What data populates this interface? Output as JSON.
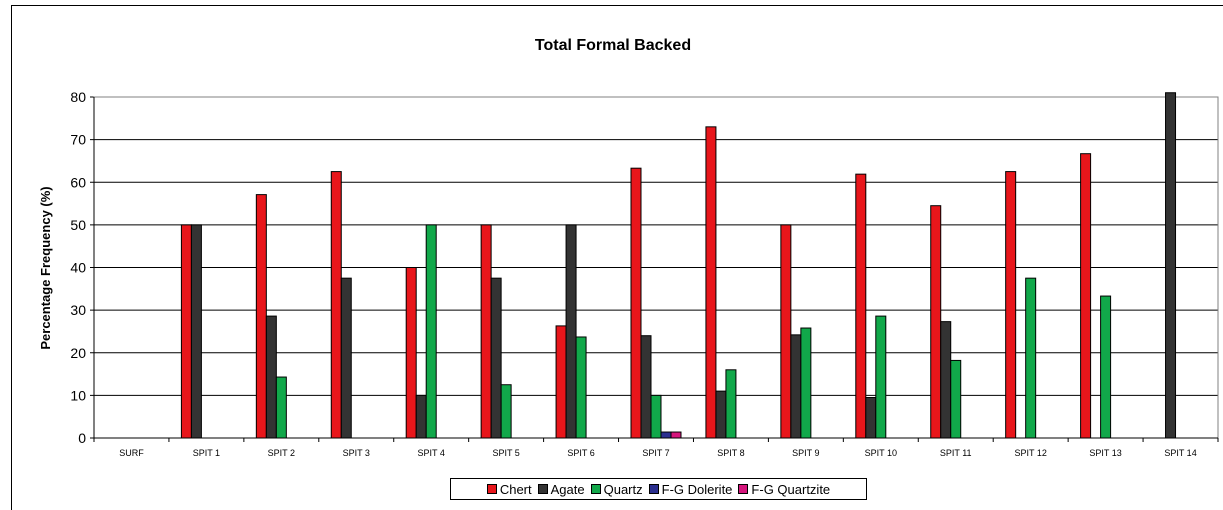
{
  "chart_data": {
    "type": "bar",
    "title": "Total Formal Backed",
    "xlabel": "",
    "ylabel": "Percentage Frequency (%)",
    "ylim": [
      0,
      80
    ],
    "yticks": [
      0,
      10,
      20,
      30,
      40,
      50,
      60,
      70,
      80
    ],
    "grid": true,
    "legend_position": "bottom",
    "categories": [
      "SURF",
      "SPIT 1",
      "SPIT 2",
      "SPIT 3",
      "SPIT 4",
      "SPIT 5",
      "SPIT 6",
      "SPIT 7",
      "SPIT 8",
      "SPIT 9",
      "SPIT 10",
      "SPIT 11",
      "SPIT 12",
      "SPIT 13",
      "SPIT 14"
    ],
    "series": [
      {
        "name": "Chert",
        "color": "#e8161b",
        "values": [
          0,
          50,
          57.1,
          62.5,
          40,
          50,
          26.3,
          63.3,
          73,
          50,
          61.9,
          54.5,
          62.5,
          66.7,
          0
        ]
      },
      {
        "name": "Agate",
        "color": "#333333",
        "values": [
          0,
          50,
          28.6,
          37.5,
          10,
          37.5,
          50,
          24,
          11,
          24.2,
          9.5,
          27.3,
          0,
          0,
          81
        ]
      },
      {
        "name": "Quartz",
        "color": "#11a84a",
        "values": [
          0,
          0,
          14.3,
          0,
          50,
          12.5,
          23.7,
          10,
          16,
          25.8,
          28.6,
          18.2,
          37.5,
          33.3,
          0
        ]
      },
      {
        "name": "F-G Dolerite",
        "color": "#2b2f8f",
        "values": [
          0,
          0,
          0,
          0,
          0,
          0,
          0,
          1.4,
          0,
          0,
          0,
          0,
          0,
          0,
          0
        ]
      },
      {
        "name": "F-G Quartzite",
        "color": "#d5157c",
        "values": [
          0,
          0,
          0,
          0,
          0,
          0,
          0,
          1.4,
          0,
          0,
          0,
          0,
          0,
          0,
          0
        ]
      }
    ]
  }
}
